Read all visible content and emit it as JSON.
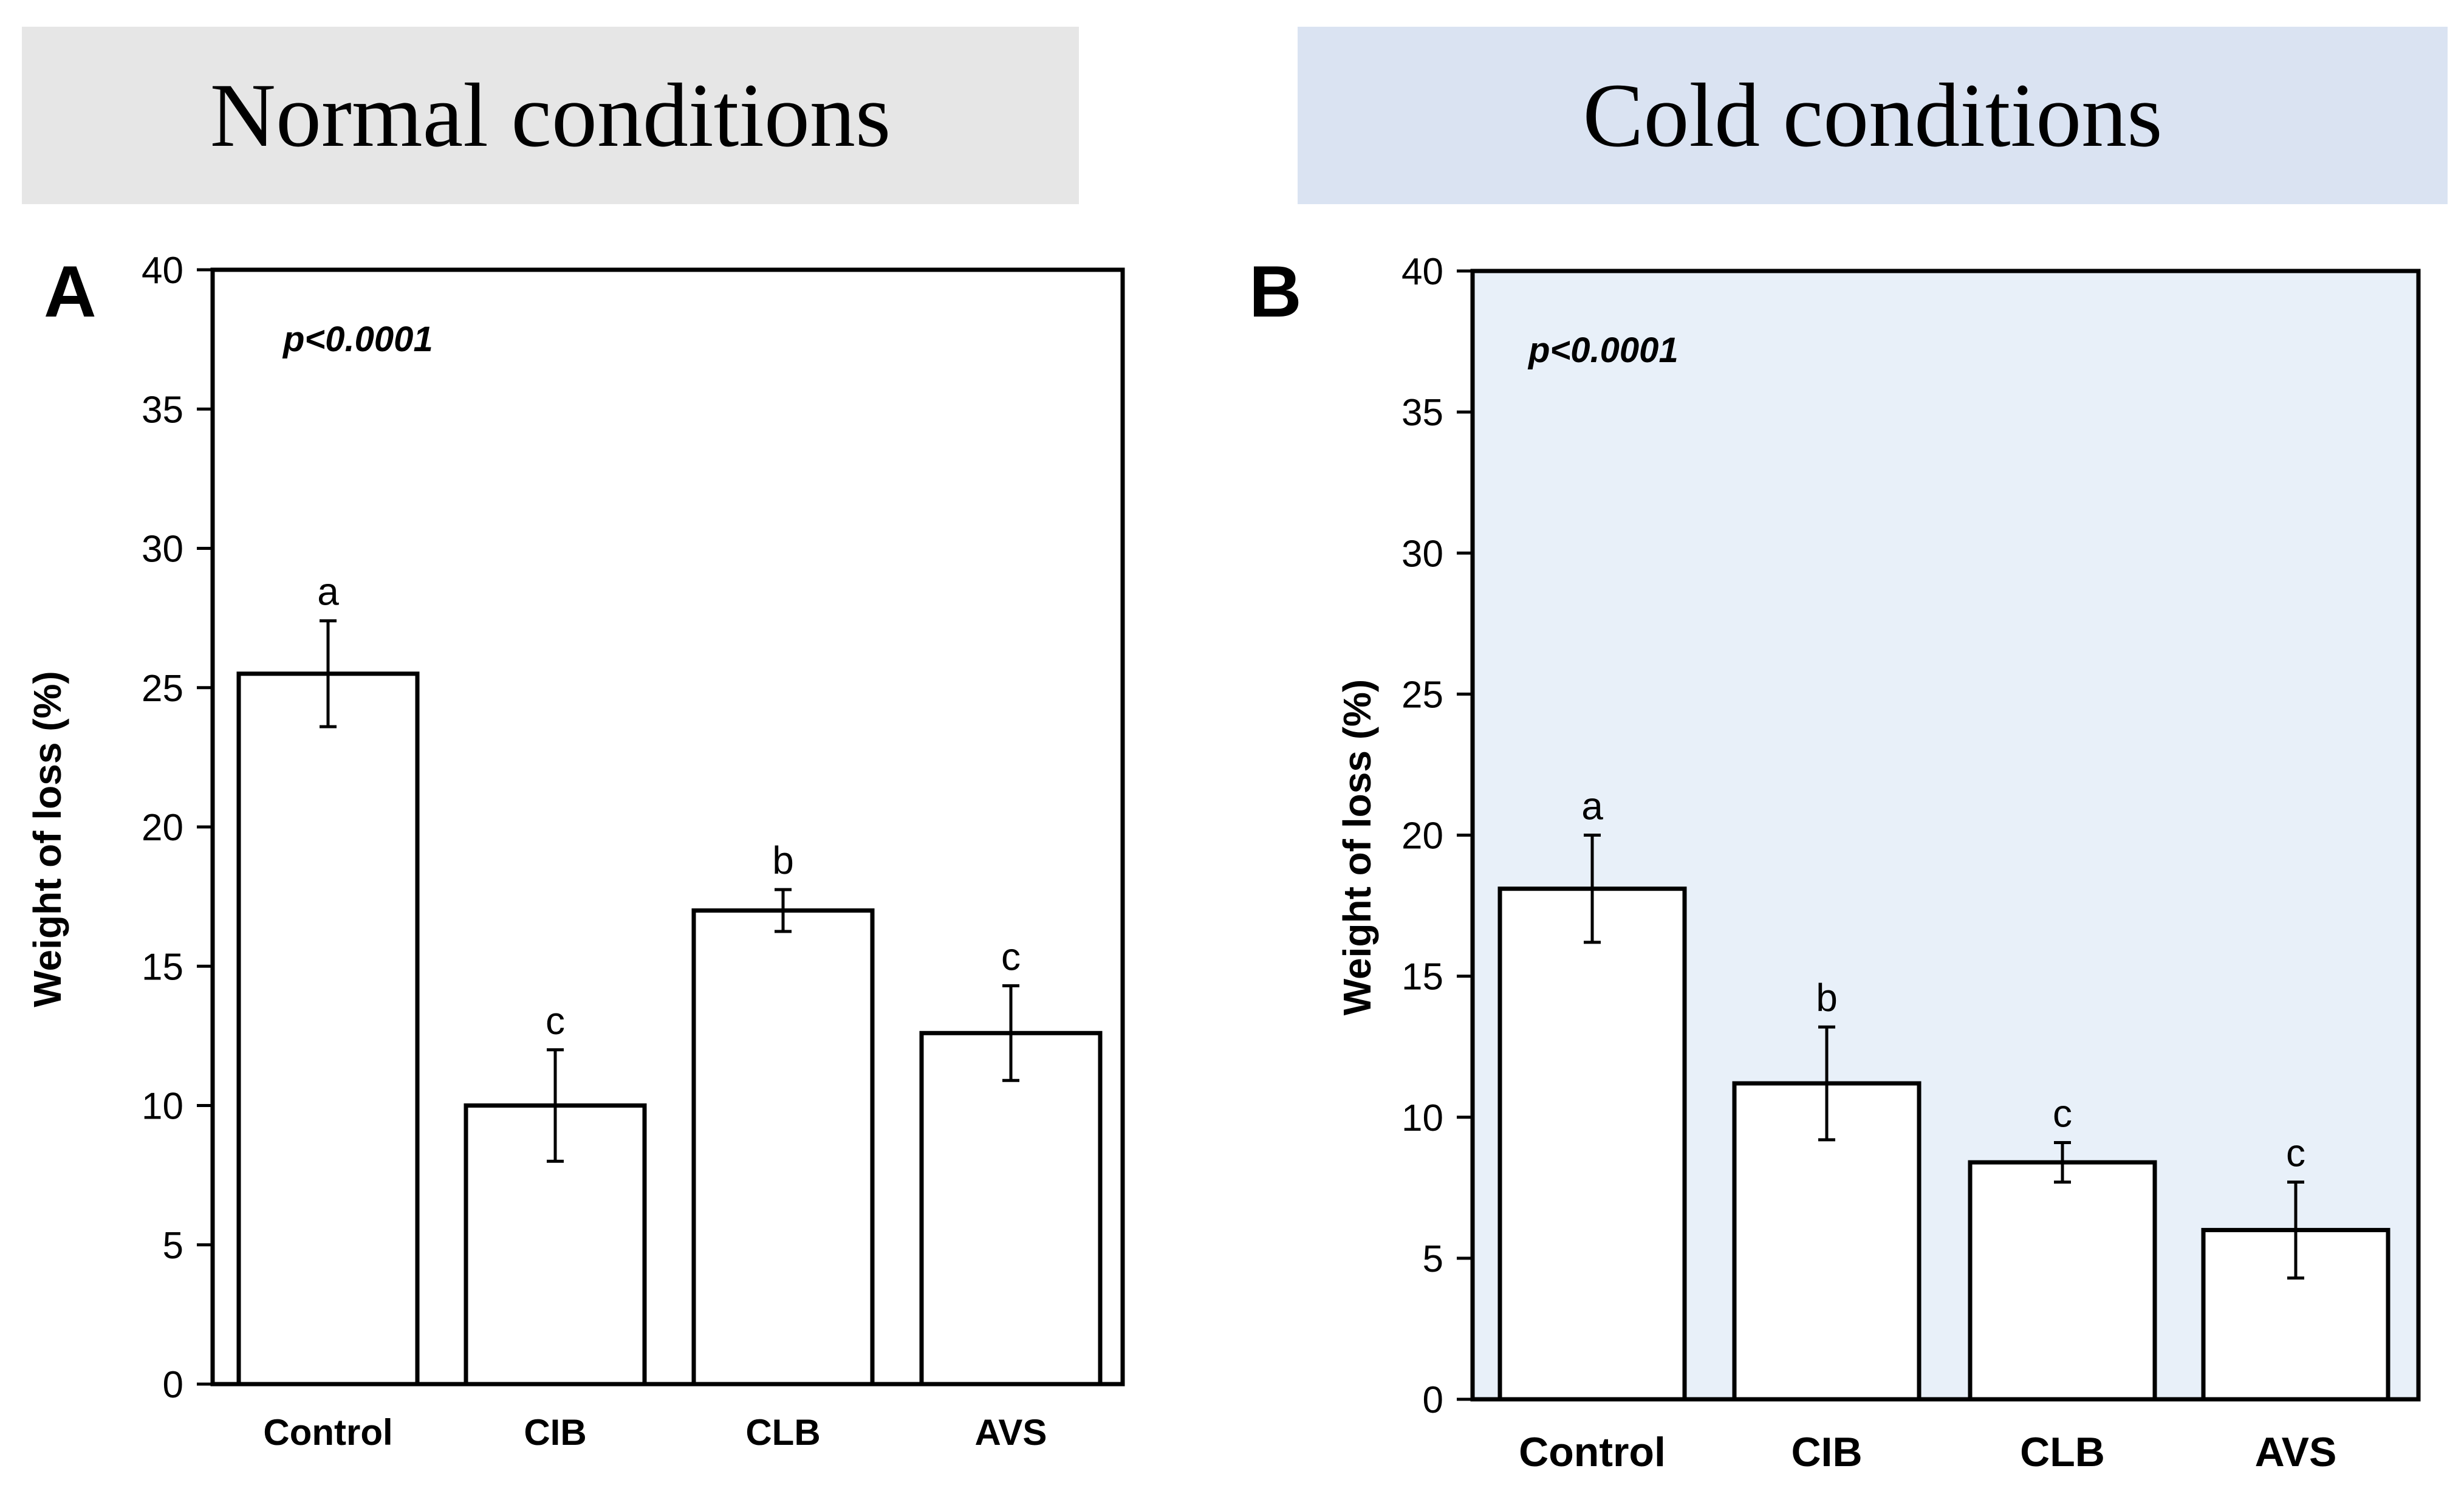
{
  "banners": {
    "normal": {
      "label": "Normal conditions",
      "color": "#e6e6e6"
    },
    "cold": {
      "label": "Cold conditions",
      "color": "#dae3f2"
    }
  },
  "chart_data": [
    {
      "type": "bar",
      "panel": "A",
      "title": "Normal conditions",
      "categories": [
        "Control",
        "CIB",
        "CLB",
        "AVS"
      ],
      "values": [
        25.5,
        10.0,
        17.0,
        12.6
      ],
      "errors": [
        1.9,
        2.0,
        0.75,
        1.7
      ],
      "significance": [
        "a",
        "c",
        "b",
        "c"
      ],
      "annotation": "p<0.0001",
      "xlabel": "",
      "ylabel": "Weight of loss (%)",
      "ylim": [
        0,
        40
      ],
      "yticks": [
        0,
        5,
        10,
        15,
        20,
        25,
        30,
        35,
        40
      ],
      "background": "#ffffff"
    },
    {
      "type": "bar",
      "panel": "B",
      "title": "Cold conditions",
      "categories": [
        "Control",
        "CIB",
        "CLB",
        "AVS"
      ],
      "values": [
        18.1,
        11.2,
        8.4,
        6.0
      ],
      "errors": [
        1.9,
        2.0,
        0.7,
        1.7
      ],
      "significance": [
        "a",
        "b",
        "c",
        "c"
      ],
      "annotation": "p<0.0001",
      "xlabel": "",
      "ylabel": "Weight of loss (%)",
      "ylim": [
        0,
        40
      ],
      "yticks": [
        0,
        5,
        10,
        15,
        20,
        25,
        30,
        35,
        40
      ],
      "background": "#e8f0f9"
    }
  ]
}
